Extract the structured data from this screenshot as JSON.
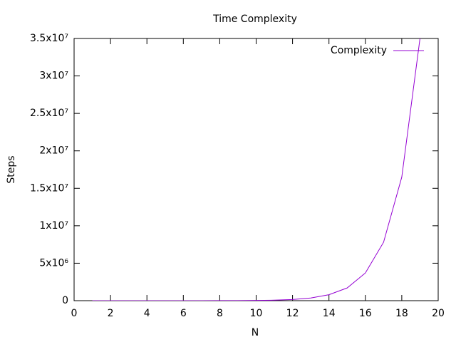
{
  "chart_data": {
    "type": "line",
    "title": "Time Complexity",
    "xlabel": "N",
    "ylabel": "Steps",
    "x": [
      1,
      2,
      3,
      4,
      5,
      6,
      7,
      8,
      9,
      10,
      11,
      12,
      13,
      14,
      15,
      16,
      17,
      18,
      19
    ],
    "series": [
      {
        "name": "Complexity",
        "color": "#9400d3",
        "values": [
          3,
          15,
          50,
          150,
          400,
          1000,
          2500,
          6000,
          13000,
          30000,
          70000,
          160000,
          360000,
          800000,
          1700000,
          3700000,
          7800000,
          16500000,
          35000000
        ]
      }
    ],
    "xlim": [
      0,
      20
    ],
    "xticks": [
      0,
      2,
      4,
      6,
      8,
      10,
      12,
      14,
      16,
      18,
      20
    ],
    "ylim": [
      0,
      35000000
    ],
    "yticks": [
      0,
      {
        "value": 5000000,
        "label": "5x10⁶"
      },
      {
        "value": 10000000,
        "label": "1x10⁷"
      },
      {
        "value": 15000000,
        "label": "1.5x10⁷"
      },
      {
        "value": 20000000,
        "label": "2x10⁷"
      },
      {
        "value": 25000000,
        "label": "2.5x10⁷"
      },
      {
        "value": 30000000,
        "label": "3x10⁷"
      },
      {
        "value": 35000000,
        "label": "3.5x10⁷"
      }
    ],
    "legend": "top-right",
    "grid": false
  }
}
